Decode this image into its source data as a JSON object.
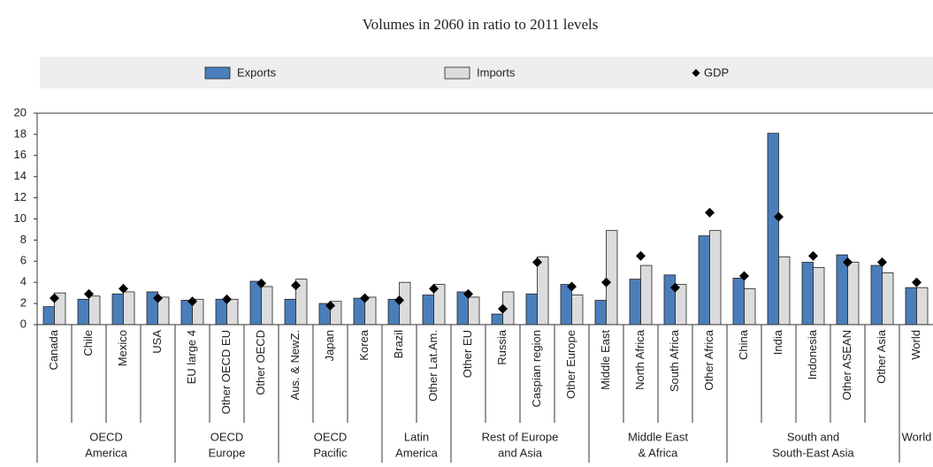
{
  "chart_data": {
    "type": "bar",
    "title": "Volumes in 2060 in ratio to 2011 levels",
    "groups": [
      {
        "lines": [
          "OECD",
          "America"
        ],
        "categories": [
          "Canada",
          "Chile",
          "Mexico",
          "USA"
        ]
      },
      {
        "lines": [
          "OECD",
          "Europe"
        ],
        "categories": [
          "EU large 4",
          "Other OECD EU",
          "Other OECD"
        ]
      },
      {
        "lines": [
          "OECD",
          "Pacific"
        ],
        "categories": [
          "Aus. & NewZ.",
          "Japan",
          "Korea"
        ]
      },
      {
        "lines": [
          "Latin",
          "America"
        ],
        "categories": [
          "Brazil",
          "Other Lat.Am."
        ]
      },
      {
        "lines": [
          "Rest of Europe",
          "and Asia"
        ],
        "categories": [
          "Other EU",
          "Russia",
          "Caspian region",
          "Other Europe"
        ]
      },
      {
        "lines": [
          "Middle East",
          "& Africa"
        ],
        "categories": [
          "Middle East",
          "North Africa",
          "South Africa",
          "Other Africa"
        ]
      },
      {
        "lines": [
          "South and",
          "South-East Asia"
        ],
        "categories": [
          "China",
          "India",
          "Indonesia",
          "Other ASEAN",
          "Other Asia"
        ]
      },
      {
        "lines": [
          "World"
        ],
        "categories": [
          "World"
        ]
      }
    ],
    "series": [
      {
        "name": "Exports",
        "color": "#4a7ebb",
        "mark": "bar",
        "values": [
          1.7,
          2.4,
          2.9,
          3.1,
          2.3,
          2.4,
          4.1,
          2.4,
          2.0,
          2.5,
          2.4,
          2.8,
          3.1,
          1.0,
          2.9,
          3.8,
          2.3,
          4.3,
          4.7,
          8.4,
          4.4,
          18.1,
          5.9,
          6.6,
          5.6,
          3.5
        ]
      },
      {
        "name": "Imports",
        "color": "#dcdcdc",
        "mark": "bar",
        "values": [
          3.0,
          2.7,
          3.1,
          2.6,
          2.4,
          2.4,
          3.6,
          4.3,
          2.2,
          2.6,
          4.0,
          3.8,
          2.6,
          3.1,
          6.4,
          2.8,
          8.9,
          5.6,
          3.8,
          8.9,
          3.4,
          6.4,
          5.4,
          5.9,
          4.9,
          3.5
        ]
      },
      {
        "name": "GDP",
        "color": "#000000",
        "mark": "diamond",
        "values": [
          2.5,
          2.9,
          3.4,
          2.5,
          2.2,
          2.4,
          3.9,
          3.7,
          1.8,
          2.5,
          2.3,
          3.4,
          2.9,
          1.5,
          5.9,
          3.6,
          4.0,
          6.5,
          3.5,
          10.6,
          4.6,
          10.2,
          6.5,
          5.9,
          5.9,
          4.0
        ]
      }
    ],
    "ylim": [
      0,
      20
    ],
    "yticks": [
      0,
      2,
      4,
      6,
      8,
      10,
      12,
      14,
      16,
      18,
      20
    ]
  }
}
